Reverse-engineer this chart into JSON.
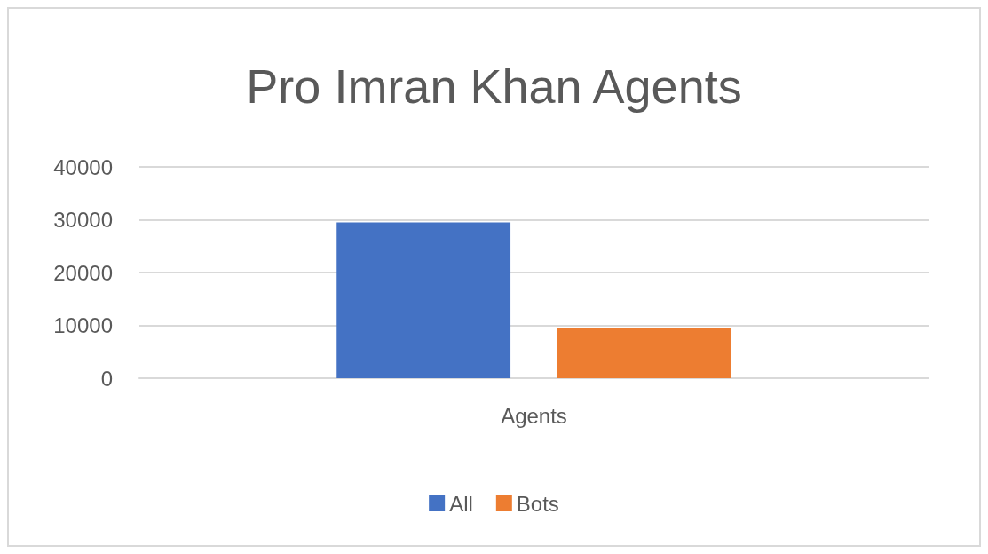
{
  "chart_data": {
    "type": "bar",
    "title": "Pro Imran Khan Agents",
    "categories": [
      "Agents"
    ],
    "series": [
      {
        "name": "All",
        "color": "#4472c4",
        "values": [
          29500
        ]
      },
      {
        "name": "Bots",
        "color": "#ed7d31",
        "values": [
          9400
        ]
      }
    ],
    "ylim": [
      0,
      40000
    ],
    "yticks": [
      0,
      10000,
      20000,
      30000,
      40000
    ],
    "grid": "y",
    "legend": "bottom"
  }
}
